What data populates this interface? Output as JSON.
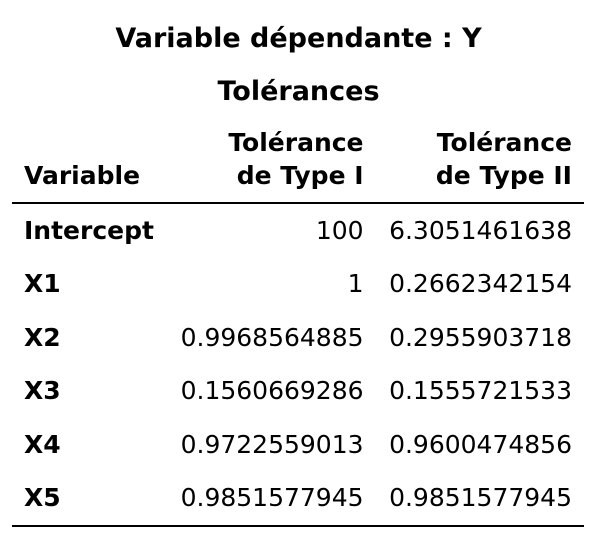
{
  "title": "Variable dépendante : Y",
  "spanning_header": "Tolérances",
  "columns": {
    "variable": "Variable",
    "type1_line1": "Tolérance",
    "type1_line2": "de Type I",
    "type2_line1": "Tolérance",
    "type2_line2": "de Type II"
  },
  "rows": [
    {
      "variable": "Intercept",
      "type1": "100",
      "type2": "6.3051461638"
    },
    {
      "variable": "X1",
      "type1": "1",
      "type2": "0.2662342154"
    },
    {
      "variable": "X2",
      "type1": "0.9968564885",
      "type2": "0.2955903718"
    },
    {
      "variable": "X3",
      "type1": "0.1560669286",
      "type2": "0.1555721533"
    },
    {
      "variable": "X4",
      "type1": "0.9722559013",
      "type2": "0.9600474856"
    },
    {
      "variable": "X5",
      "type1": "0.9851577945",
      "type2": "0.9851577945"
    }
  ]
}
